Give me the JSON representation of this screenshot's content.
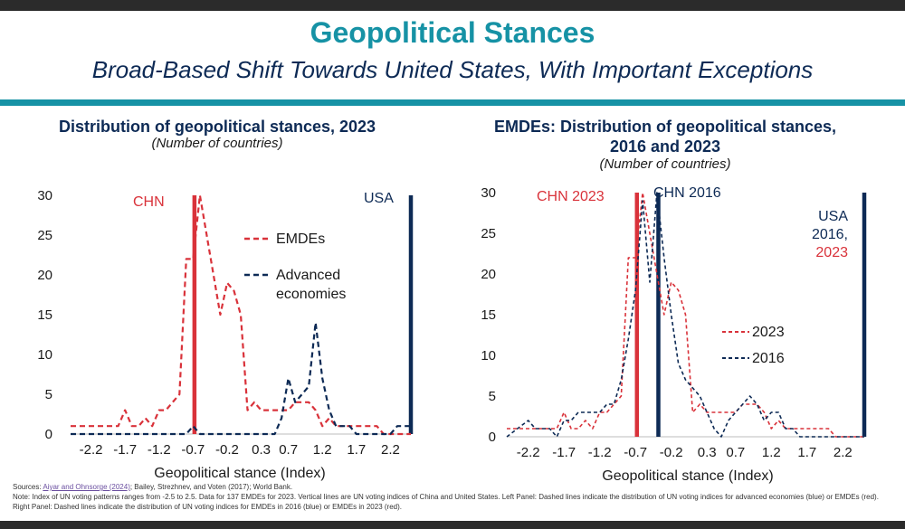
{
  "header": {
    "title": "Geopolitical Stances",
    "subtitle": "Broad-Based Shift Towards United States, With Important Exceptions"
  },
  "colors": {
    "teal": "#1692a5",
    "navy": "#0d2a55",
    "red": "#d9323a",
    "emde_red": "#d9323a",
    "adv_blue": "#0d2a55"
  },
  "left": {
    "title": "Distribution of geopolitical stances, 2023",
    "unit": "(Number of countries)",
    "annotations": {
      "chn": "CHN",
      "usa": "USA"
    }
  },
  "right": {
    "title_line1": "EMDEs: Distribution of geopolitical stances,",
    "title_line2": "2016 and 2023",
    "unit": "(Number of countries)",
    "annotations": {
      "chn2023": "CHN 2023",
      "chn2016": "CHN 2016",
      "usa_line1": "USA",
      "usa_line2": "2016,",
      "usa_line3": "2023"
    }
  },
  "chart_data": [
    {
      "type": "line",
      "title": "Distribution of geopolitical stances, 2023",
      "subtitle": "(Number of countries)",
      "xlabel": "Geopolitical stance (Index)",
      "ylabel": "",
      "xlim": [
        -2.5,
        2.5
      ],
      "ylim": [
        0,
        30
      ],
      "xticks": [
        -2.2,
        -1.7,
        -1.2,
        -0.7,
        -0.2,
        0.3,
        0.7,
        1.2,
        1.7,
        2.2
      ],
      "xtick_labels": [
        "-2.2",
        "-1.7",
        "-1.2",
        "-0.7",
        "-0.2",
        "0.3",
        "0.7",
        "1.2",
        "1.7",
        "2.2"
      ],
      "yticks": [
        0,
        5,
        10,
        15,
        20,
        25,
        30
      ],
      "vlines": [
        {
          "label": "CHN",
          "x": -0.68,
          "color": "#d9323a"
        },
        {
          "label": "USA",
          "x": 2.5,
          "color": "#0d2a55"
        }
      ],
      "series": [
        {
          "name": "EMDEs",
          "color": "#d9323a",
          "style": "dashed",
          "x": [
            -2.5,
            -2.2,
            -2.0,
            -1.9,
            -1.8,
            -1.7,
            -1.6,
            -1.5,
            -1.4,
            -1.3,
            -1.2,
            -1.1,
            -1.0,
            -0.9,
            -0.8,
            -0.7,
            -0.6,
            -0.5,
            -0.4,
            -0.3,
            -0.2,
            -0.1,
            0.0,
            0.1,
            0.2,
            0.3,
            0.4,
            0.5,
            0.6,
            0.7,
            0.8,
            0.9,
            1.0,
            1.1,
            1.2,
            1.3,
            1.4,
            1.5,
            1.6,
            1.7,
            1.8,
            1.9,
            2.0,
            2.1,
            2.2,
            2.3,
            2.4,
            2.5
          ],
          "y": [
            1,
            1,
            1,
            1,
            1,
            3,
            1,
            1,
            2,
            1,
            3,
            3,
            4,
            5,
            22,
            22,
            30,
            25,
            20,
            15,
            19,
            18,
            15,
            3,
            4,
            3,
            3,
            3,
            3,
            3,
            4,
            4,
            4,
            3,
            1,
            2,
            1,
            1,
            1,
            1,
            1,
            1,
            1,
            0,
            0,
            0,
            0,
            0
          ]
        },
        {
          "name": "Advanced economies",
          "color": "#0d2a55",
          "style": "dashed",
          "x": [
            -2.5,
            -1.0,
            -0.9,
            -0.8,
            -0.7,
            -0.6,
            -0.5,
            -0.4,
            -0.3,
            -0.2,
            -0.1,
            0.0,
            0.1,
            0.2,
            0.3,
            0.4,
            0.5,
            0.6,
            0.7,
            0.8,
            0.9,
            1.0,
            1.1,
            1.2,
            1.3,
            1.4,
            1.5,
            1.6,
            1.7,
            1.8,
            2.0,
            2.2,
            2.3,
            2.4,
            2.5
          ],
          "y": [
            0,
            0,
            0,
            0,
            1,
            0,
            0,
            0,
            0,
            0,
            0,
            0,
            0,
            0,
            0,
            0,
            0,
            2,
            7,
            4,
            5,
            6,
            14,
            7,
            3,
            1,
            1,
            1,
            0,
            0,
            0,
            0,
            1,
            1,
            1
          ]
        }
      ],
      "legend": "right-center"
    },
    {
      "type": "line",
      "title": "EMDEs: Distribution of geopolitical stances, 2016 and 2023",
      "subtitle": "(Number of countries)",
      "xlabel": "Geopolitical stance (Index)",
      "ylabel": "",
      "xlim": [
        -2.5,
        2.5
      ],
      "ylim": [
        0,
        30
      ],
      "xticks": [
        -2.2,
        -1.7,
        -1.2,
        -0.7,
        -0.2,
        0.3,
        0.7,
        1.2,
        1.7,
        2.2
      ],
      "xtick_labels": [
        "-2.2",
        "-1.7",
        "-1.2",
        "-0.7",
        "-0.2",
        "0.3",
        "0.7",
        "1.2",
        "1.7",
        "2.2"
      ],
      "yticks": [
        0,
        5,
        10,
        15,
        20,
        25,
        30
      ],
      "vlines": [
        {
          "label": "CHN 2023",
          "x": -0.68,
          "color": "#d9323a"
        },
        {
          "label": "CHN 2016",
          "x": -0.38,
          "color": "#0d2a55"
        },
        {
          "label": "USA 2016, 2023",
          "x": 2.5,
          "color": "#0d2a55"
        }
      ],
      "series": [
        {
          "name": "2023",
          "color": "#d9323a",
          "style": "dashed",
          "x": [
            -2.5,
            -2.2,
            -2.0,
            -1.9,
            -1.8,
            -1.7,
            -1.6,
            -1.5,
            -1.4,
            -1.3,
            -1.2,
            -1.1,
            -1.0,
            -0.9,
            -0.8,
            -0.7,
            -0.6,
            -0.5,
            -0.4,
            -0.3,
            -0.2,
            -0.1,
            0.0,
            0.1,
            0.2,
            0.3,
            0.4,
            0.5,
            0.6,
            0.7,
            0.8,
            0.9,
            1.0,
            1.1,
            1.2,
            1.3,
            1.4,
            1.5,
            1.6,
            1.7,
            1.8,
            1.9,
            2.0,
            2.1,
            2.2,
            2.3,
            2.4,
            2.5
          ],
          "y": [
            1,
            1,
            1,
            1,
            1,
            3,
            1,
            1,
            2,
            1,
            3,
            3,
            4,
            5,
            22,
            22,
            30,
            25,
            20,
            15,
            19,
            18,
            15,
            3,
            4,
            3,
            3,
            3,
            3,
            3,
            4,
            4,
            4,
            3,
            1,
            2,
            1,
            1,
            1,
            1,
            1,
            1,
            1,
            0,
            0,
            0,
            0,
            0
          ]
        },
        {
          "name": "2016",
          "color": "#0d2a55",
          "style": "dashed",
          "x": [
            -2.5,
            -2.2,
            -2.1,
            -2.0,
            -1.9,
            -1.8,
            -1.7,
            -1.6,
            -1.5,
            -1.4,
            -1.3,
            -1.2,
            -1.1,
            -1.0,
            -0.9,
            -0.8,
            -0.7,
            -0.6,
            -0.5,
            -0.4,
            -0.3,
            -0.2,
            -0.1,
            0.0,
            0.1,
            0.2,
            0.3,
            0.4,
            0.5,
            0.6,
            0.7,
            0.8,
            0.9,
            1.0,
            1.1,
            1.2,
            1.3,
            1.4,
            1.5,
            1.6,
            1.7,
            1.8,
            2.0,
            2.2,
            2.4,
            2.5
          ],
          "y": [
            0,
            2,
            1,
            1,
            1,
            0,
            2,
            2,
            3,
            3,
            3,
            3,
            4,
            4,
            7,
            12,
            18,
            29,
            19,
            30,
            22,
            15,
            9,
            7,
            6,
            5,
            3,
            1,
            0,
            2,
            3,
            4,
            5,
            4,
            2,
            3,
            3,
            1,
            1,
            0,
            0,
            0,
            0,
            0,
            0,
            0
          ]
        }
      ],
      "legend": "right-center"
    }
  ],
  "footer": {
    "sources_label": "Sources: ",
    "sources_link": "Aiyar and Ohnsorge (2024)",
    "sources_rest": "; Bailey, Strezhnev, and Voten (2017); World Bank.",
    "note": "Note: Index of UN voting patterns ranges from -2.5 to 2.5. Data for 137 EMDEs for 2023. Vertical lines are UN voting indices of China and United States. Left Panel: Dashed lines indicate the distribution of UN voting indices for advanced economies (blue) or EMDEs (red). Right Panel: Dashed lines indicate the distribution of UN voting indices for EMDEs in 2016 (blue) or EMDEs in 2023 (red)."
  }
}
